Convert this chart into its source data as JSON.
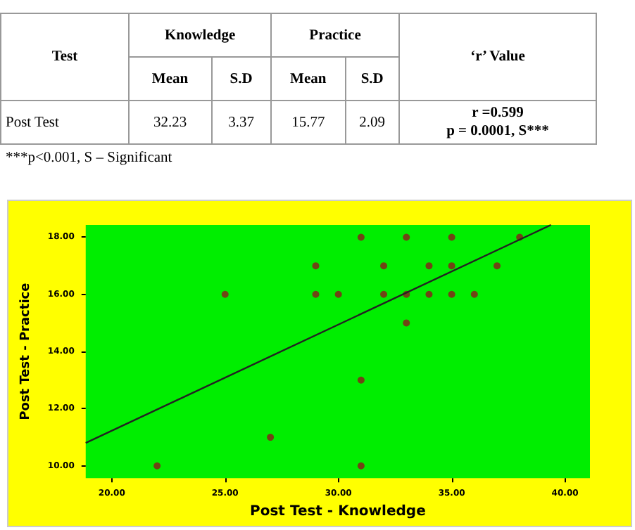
{
  "chart_data": [
    {
      "type": "other",
      "annotations": [
        "Test",
        "Knowledge",
        "Practice",
        "‘r’ Value",
        "Mean",
        "S.D",
        "Mean",
        "S.D",
        "Post Test",
        "32.23",
        "3.37",
        "15.77",
        "2.09",
        "r =0.599",
        "p = 0.0001, S***",
        "***p<0.001, S – Significant"
      ]
    },
    {
      "type": "scatter",
      "xlabel": "Post Test - Knowledge",
      "ylabel": "Post Test - Practice",
      "marker": "circle",
      "grid": false,
      "xlim": [
        18.85,
        41.1
      ],
      "ylim": [
        9.57,
        18.43
      ],
      "xticks": [
        {
          "value": 20,
          "label": "20.00"
        },
        {
          "value": 25,
          "label": "25.00"
        },
        {
          "value": 30,
          "label": "30.00"
        },
        {
          "value": 35,
          "label": "35.00"
        },
        {
          "value": 40,
          "label": "40.00"
        }
      ],
      "yticks": [
        {
          "value": 10,
          "label": "10.00"
        },
        {
          "value": 12,
          "label": "12.00"
        },
        {
          "value": 14,
          "label": "14.00"
        },
        {
          "value": 16,
          "label": "16.00"
        },
        {
          "value": 18,
          "label": "18.00"
        }
      ],
      "series": [
        {
          "color": "#8b1a1a",
          "x": [
            22,
            25,
            27,
            29,
            29,
            30,
            31,
            31,
            31,
            32,
            32,
            33,
            33,
            33,
            34,
            34,
            35,
            35,
            35,
            36,
            37,
            38
          ],
          "values": [
            10,
            16,
            11,
            17,
            16,
            16,
            18,
            13,
            10,
            17,
            16,
            18,
            16,
            15,
            17,
            16,
            18,
            17,
            16,
            16,
            17,
            18
          ]
        },
        {
          "type": "line",
          "marker": "none",
          "color": "#222222",
          "x": [
            18.85,
            39.38
          ],
          "values": [
            10.8,
            18.43
          ]
        }
      ]
    }
  ]
}
